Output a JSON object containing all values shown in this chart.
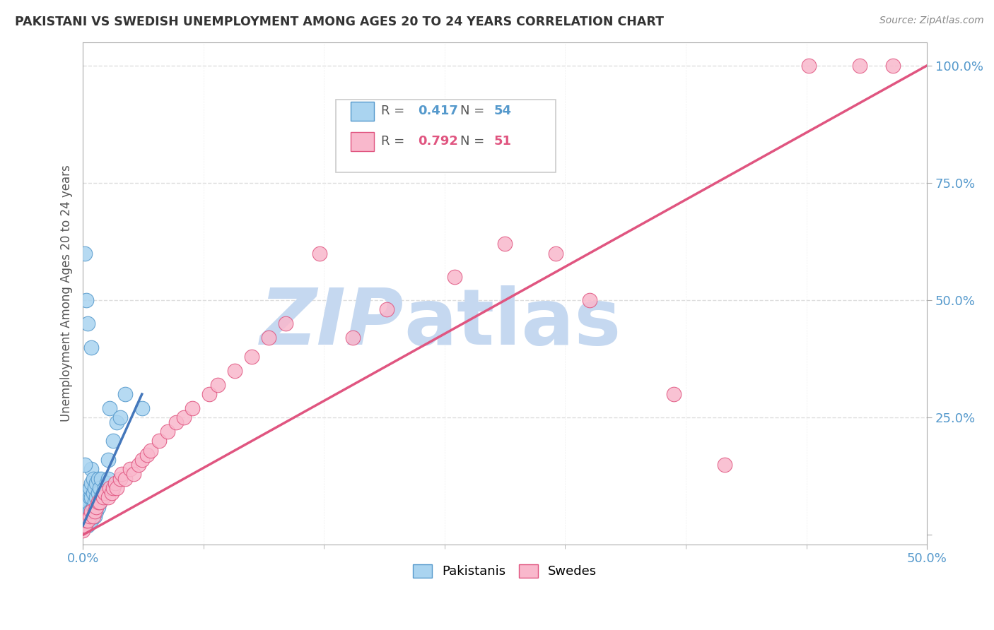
{
  "title": "PAKISTANI VS SWEDISH UNEMPLOYMENT AMONG AGES 20 TO 24 YEARS CORRELATION CHART",
  "source": "Source: ZipAtlas.com",
  "ylabel": "Unemployment Among Ages 20 to 24 years",
  "legend_pakistanis": "Pakistanis",
  "legend_swedes": "Swedes",
  "R_pakistanis": "0.417",
  "N_pakistanis": "54",
  "R_swedes": "0.792",
  "N_swedes": "51",
  "color_pakistanis_fill": "#aad4f0",
  "color_pakistanis_edge": "#5599cc",
  "color_swedes_fill": "#f9b8cc",
  "color_swedes_edge": "#e05580",
  "color_ref_line": "#cccccc",
  "color_blue_line": "#4477bb",
  "color_pink_line": "#e05580",
  "color_title": "#333333",
  "color_axis_blue": "#5599cc",
  "watermark_zip_color": "#c5d8f0",
  "watermark_atlas_color": "#c5d8f0",
  "xlim": [
    0.0,
    0.5
  ],
  "ylim": [
    -0.02,
    1.05
  ],
  "xtick_minor_positions": [
    0.0,
    0.0714,
    0.1429,
    0.2143,
    0.2857,
    0.3571,
    0.4286,
    0.5
  ],
  "yticks": [
    0.0,
    0.25,
    0.5,
    0.75,
    1.0
  ],
  "ytick_labels": [
    "",
    "25.0%",
    "50.0%",
    "75.0%",
    "100.0%"
  ],
  "pak_x": [
    0.001,
    0.001,
    0.001,
    0.002,
    0.002,
    0.002,
    0.002,
    0.003,
    0.003,
    0.003,
    0.003,
    0.003,
    0.004,
    0.004,
    0.004,
    0.004,
    0.005,
    0.005,
    0.005,
    0.005,
    0.005,
    0.006,
    0.006,
    0.006,
    0.006,
    0.007,
    0.007,
    0.007,
    0.008,
    0.008,
    0.008,
    0.009,
    0.009,
    0.009,
    0.01,
    0.01,
    0.011,
    0.011,
    0.012,
    0.013,
    0.014,
    0.015,
    0.015,
    0.016,
    0.018,
    0.02,
    0.022,
    0.025,
    0.001,
    0.002,
    0.003,
    0.001,
    0.005,
    0.035
  ],
  "pak_y": [
    0.02,
    0.03,
    0.04,
    0.02,
    0.03,
    0.05,
    0.07,
    0.02,
    0.04,
    0.05,
    0.07,
    0.09,
    0.03,
    0.05,
    0.08,
    0.1,
    0.03,
    0.05,
    0.08,
    0.11,
    0.14,
    0.04,
    0.06,
    0.09,
    0.12,
    0.04,
    0.07,
    0.1,
    0.05,
    0.08,
    0.11,
    0.06,
    0.09,
    0.12,
    0.07,
    0.1,
    0.08,
    0.12,
    0.09,
    0.1,
    0.11,
    0.12,
    0.16,
    0.27,
    0.2,
    0.24,
    0.25,
    0.3,
    0.6,
    0.5,
    0.45,
    0.15,
    0.4,
    0.27
  ],
  "swe_x": [
    0.0,
    0.001,
    0.002,
    0.003,
    0.004,
    0.005,
    0.006,
    0.007,
    0.008,
    0.009,
    0.01,
    0.012,
    0.013,
    0.015,
    0.016,
    0.017,
    0.018,
    0.019,
    0.02,
    0.022,
    0.023,
    0.025,
    0.028,
    0.03,
    0.033,
    0.035,
    0.038,
    0.04,
    0.045,
    0.05,
    0.055,
    0.06,
    0.065,
    0.075,
    0.08,
    0.09,
    0.1,
    0.11,
    0.12,
    0.14,
    0.16,
    0.18,
    0.22,
    0.25,
    0.28,
    0.3,
    0.35,
    0.38,
    0.43,
    0.46,
    0.48
  ],
  "swe_y": [
    0.01,
    0.02,
    0.03,
    0.03,
    0.04,
    0.05,
    0.04,
    0.05,
    0.06,
    0.07,
    0.07,
    0.08,
    0.09,
    0.08,
    0.1,
    0.09,
    0.1,
    0.11,
    0.1,
    0.12,
    0.13,
    0.12,
    0.14,
    0.13,
    0.15,
    0.16,
    0.17,
    0.18,
    0.2,
    0.22,
    0.24,
    0.25,
    0.27,
    0.3,
    0.32,
    0.35,
    0.38,
    0.42,
    0.45,
    0.6,
    0.42,
    0.48,
    0.55,
    0.62,
    0.6,
    0.5,
    0.3,
    0.15,
    1.0,
    1.0,
    1.0
  ],
  "pak_trend_x": [
    0.0,
    0.035
  ],
  "pak_trend_y": [
    0.02,
    0.3
  ],
  "swe_trend_x": [
    0.0,
    0.5
  ],
  "swe_trend_y": [
    0.0,
    1.0
  ]
}
